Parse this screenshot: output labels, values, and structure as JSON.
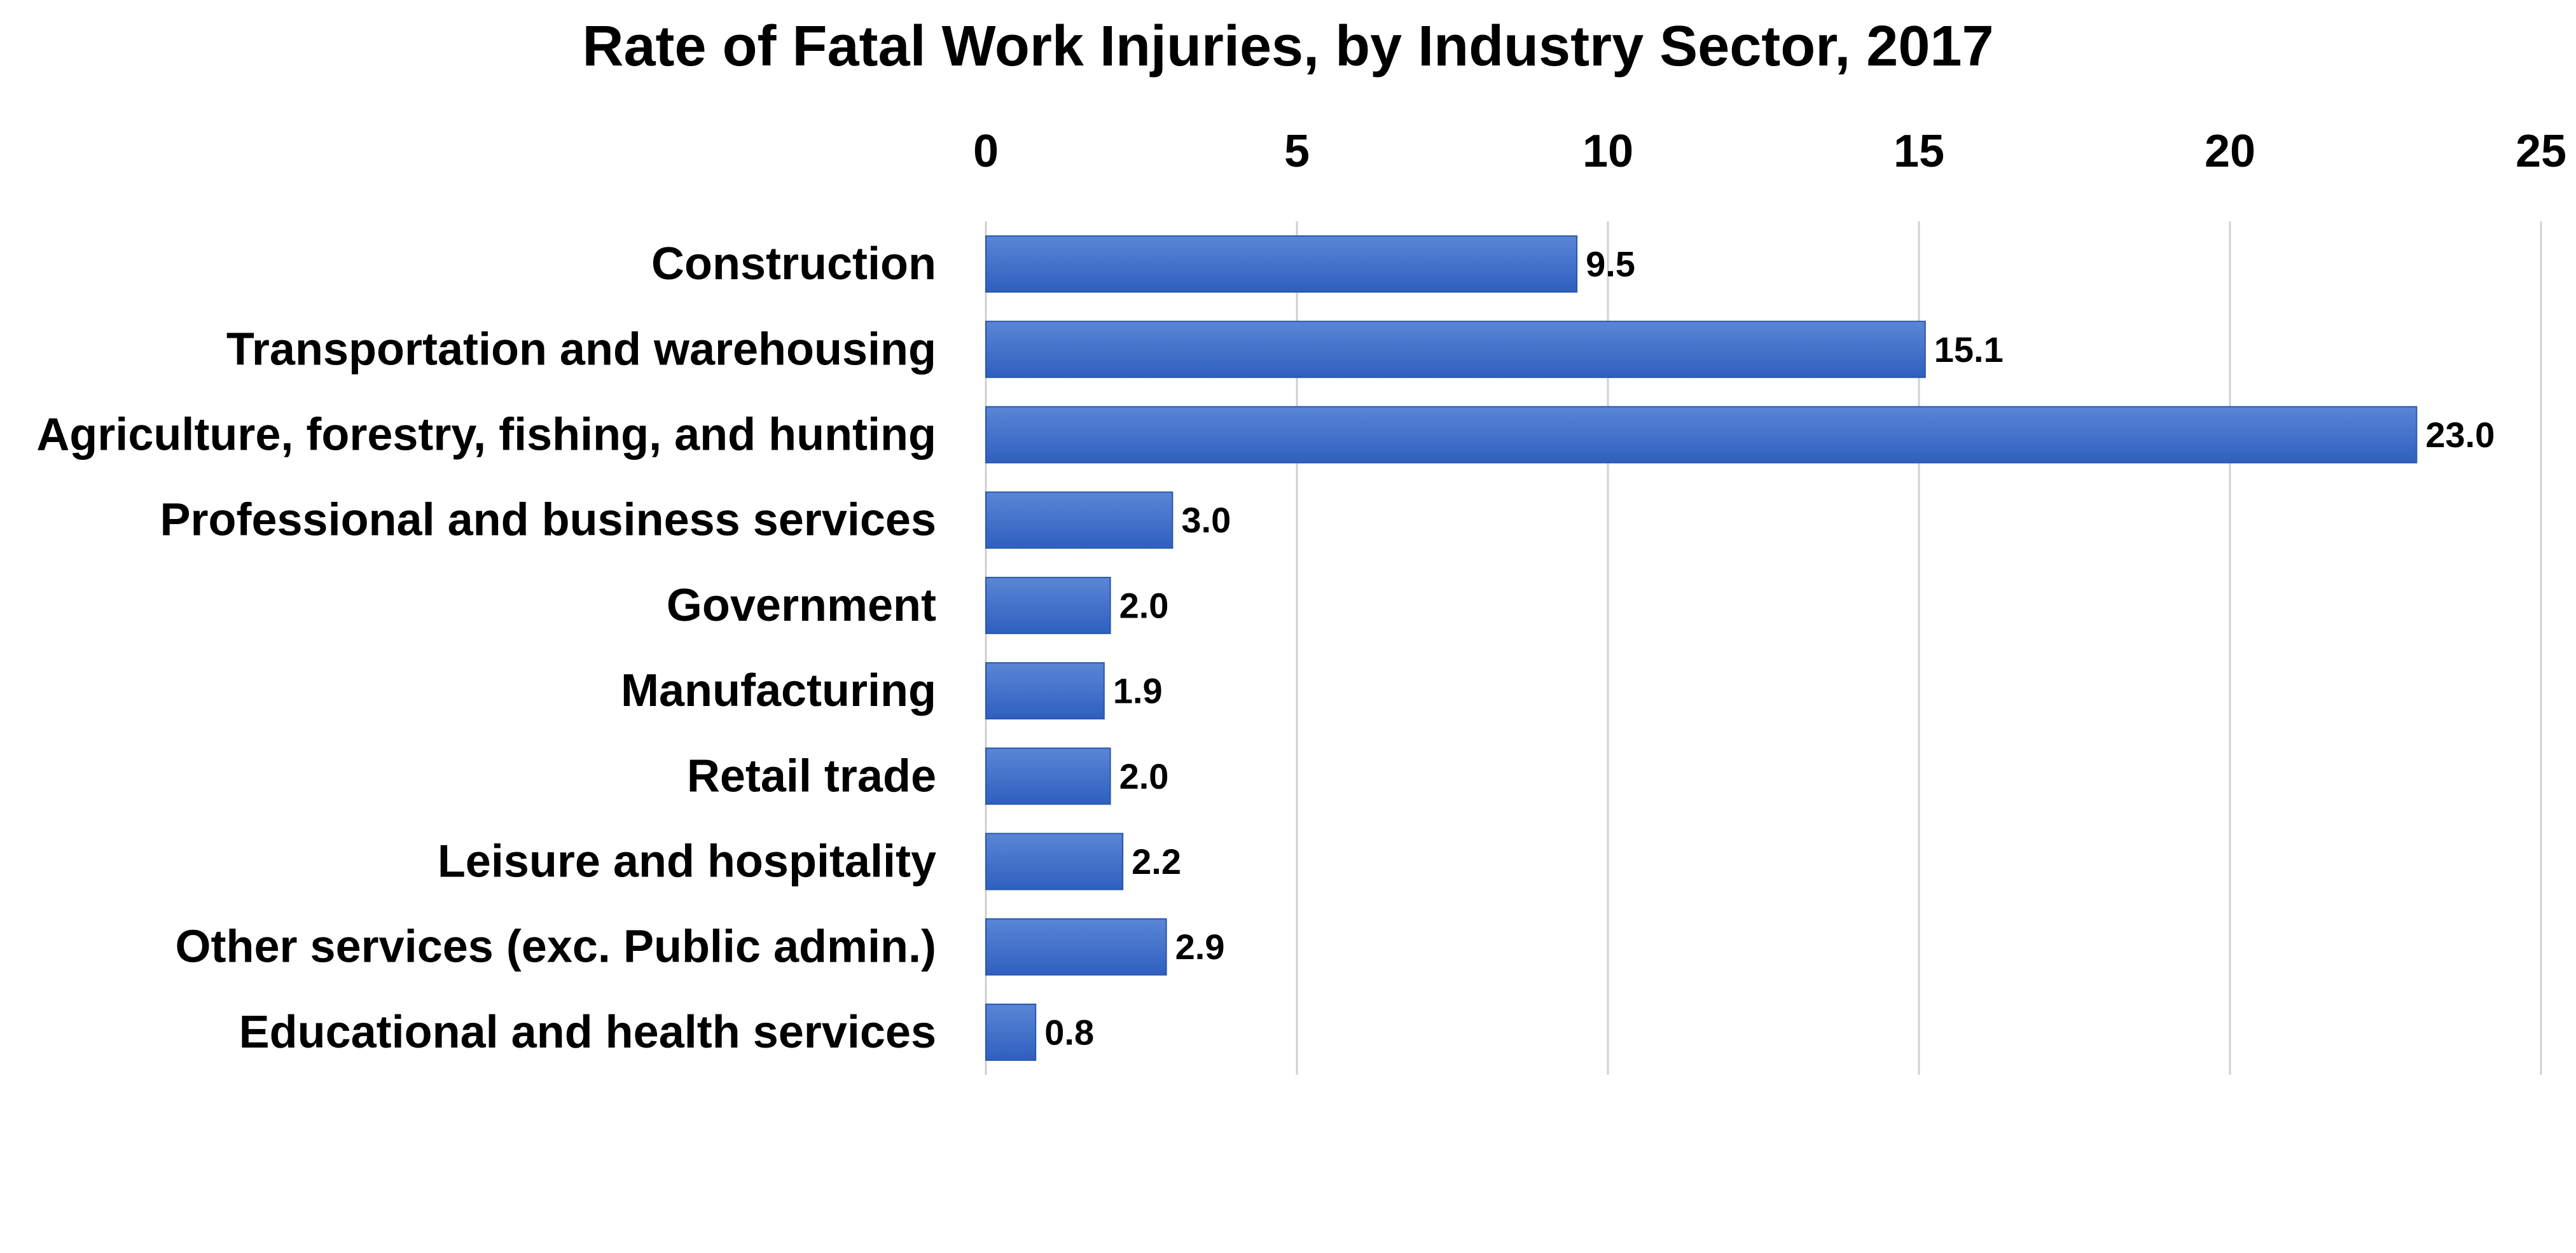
{
  "chart_data": {
    "type": "bar",
    "orientation": "horizontal",
    "title": "Rate of Fatal Work Injuries, by Industry Sector, 2017",
    "categories": [
      "Construction",
      "Transportation and warehousing",
      "Agriculture, forestry, fishing, and hunting",
      "Professional and business services",
      "Government",
      "Manufacturing",
      "Retail trade",
      "Leisure and hospitality",
      "Other services (exc. Public admin.)",
      "Educational and health services"
    ],
    "values": [
      9.5,
      15.1,
      23.0,
      3.0,
      2.0,
      1.9,
      2.0,
      2.2,
      2.9,
      0.8
    ],
    "data_labels": [
      "9.5",
      "15.1",
      "23.0",
      "3.0",
      "2.0",
      "1.9",
      "2.0",
      "2.2",
      "2.9",
      "0.8"
    ],
    "xlabel": "",
    "ylabel": "",
    "xlim": [
      0,
      25
    ],
    "ticks": [
      0,
      5,
      10,
      15,
      20,
      25
    ],
    "tick_labels": [
      "0",
      "5",
      "10",
      "15",
      "20",
      "25"
    ],
    "axis_position": "top",
    "grid": true,
    "legend": "none",
    "colors": {
      "bar_top": "#5B86D6",
      "bar_bottom": "#2F5FBF",
      "bar_edge": "#2A56AE",
      "grid": "#D0D0D0"
    }
  }
}
